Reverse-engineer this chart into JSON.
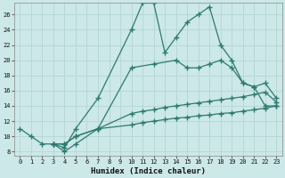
{
  "xlabel": "Humidex (Indice chaleur)",
  "bg_color": "#cce8e8",
  "line_color": "#2d7a6e",
  "grid_color": "#b8d8d8",
  "xlim": [
    -0.5,
    23.5
  ],
  "ylim": [
    7.5,
    27.5
  ],
  "xticks": [
    0,
    1,
    2,
    3,
    4,
    5,
    6,
    7,
    8,
    9,
    10,
    11,
    12,
    13,
    14,
    15,
    16,
    17,
    18,
    19,
    20,
    21,
    22,
    23
  ],
  "yticks": [
    8,
    10,
    12,
    14,
    16,
    18,
    20,
    22,
    24,
    26
  ],
  "line1_x": [
    0,
    1,
    2,
    3,
    4,
    5,
    7,
    10,
    11,
    12,
    13,
    14,
    15,
    16,
    17,
    18,
    19,
    20,
    21,
    22,
    23
  ],
  "line1_y": [
    11,
    10,
    9,
    9,
    8.5,
    11,
    15,
    24,
    27.5,
    27.5,
    21,
    23,
    25,
    26,
    27,
    22,
    20,
    17,
    16.5,
    14,
    14
  ],
  "line2_x": [
    3,
    4,
    5,
    7,
    10,
    12,
    14,
    15,
    16,
    17,
    18,
    19,
    20,
    21,
    22,
    23
  ],
  "line2_y": [
    9,
    8,
    9,
    11,
    19,
    19.5,
    20,
    19,
    19,
    19.5,
    20,
    19,
    17,
    16.5,
    17,
    15
  ],
  "line3_x": [
    3,
    4,
    5,
    7,
    10,
    11,
    12,
    13,
    14,
    15,
    16,
    17,
    18,
    19,
    20,
    21,
    22,
    23
  ],
  "line3_y": [
    9,
    9,
    10,
    11,
    13,
    13.3,
    13.5,
    13.8,
    14,
    14.2,
    14.4,
    14.6,
    14.8,
    15,
    15.2,
    15.5,
    15.8,
    14.5
  ],
  "line4_x": [
    3,
    4,
    5,
    7,
    10,
    11,
    12,
    13,
    14,
    15,
    16,
    17,
    18,
    19,
    20,
    21,
    22,
    23
  ],
  "line4_y": [
    9,
    9,
    10,
    11,
    11.5,
    11.8,
    12,
    12.2,
    12.4,
    12.5,
    12.7,
    12.8,
    13,
    13.1,
    13.3,
    13.5,
    13.7,
    14
  ]
}
